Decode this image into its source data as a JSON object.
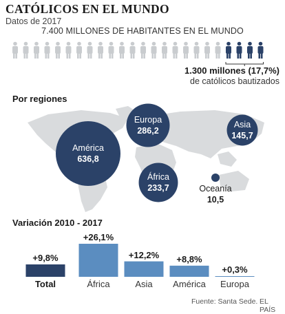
{
  "header": {
    "title": "CATÓLICOS EN EL MUNDO",
    "subtitle": "Datos de 2017",
    "total_label": "7.400 MILLONES DE HABITANTES EN EL MUNDO",
    "catholic_count": "1.300 millones (17,7%)",
    "catholic_desc": "de católicos bautizados"
  },
  "icons": {
    "person": "person-icon",
    "total_people": 24,
    "catholic_people": 4
  },
  "sections": {
    "regions": "Por regiones",
    "variation": "Variación 2010 - 2017"
  },
  "colors": {
    "dark_blue": "#2b4268",
    "light_blue": "#5b8dc0",
    "grey": "#c9cccf",
    "map": "#d9dbdd"
  },
  "footer": {
    "source": "Fuente: Santa Sede.",
    "brand": "EL PAÍS"
  },
  "chart_data": [
    {
      "type": "bubble",
      "title": "Por regiones",
      "unit": "millones de católicos",
      "categories": [
        "América",
        "Europa",
        "Asia",
        "África",
        "Oceanía"
      ],
      "values": [
        636.8,
        286.2,
        145.7,
        233.7,
        10.5
      ],
      "labels": [
        "636,8",
        "286,2",
        "145,7",
        "233,7",
        "10,5"
      ]
    },
    {
      "type": "bar",
      "title": "Variación 2010 - 2017",
      "categories": [
        "Total",
        "África",
        "Asia",
        "América",
        "Europa"
      ],
      "values": [
        9.8,
        26.1,
        12.2,
        8.8,
        0.3
      ],
      "labels": [
        "+9,8%",
        "+26,1%",
        "+12,2%",
        "+8,8%",
        "+0,3%"
      ],
      "highlight": "Total"
    }
  ]
}
